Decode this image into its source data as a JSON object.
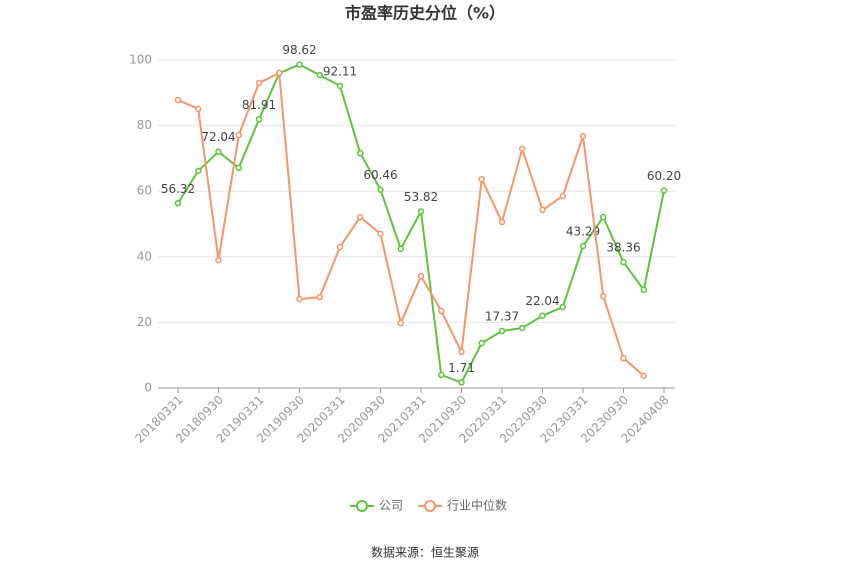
{
  "chart_data": {
    "type": "line",
    "title": "市盈率历史分位（%）",
    "categories": [
      "20180331",
      null,
      "20180930",
      null,
      "20190331",
      null,
      "20190930",
      null,
      "20200331",
      null,
      "20200930",
      null,
      "20210331",
      null,
      "20210930",
      null,
      "20220331",
      null,
      "20220930",
      null,
      "20230331",
      null,
      "20230930",
      null,
      "20240408"
    ],
    "series": [
      {
        "name": "公司",
        "color": "#5cc43a",
        "values": [
          56.32,
          66.2,
          72.04,
          67.1,
          81.91,
          96.0,
          98.62,
          95.4,
          92.11,
          71.6,
          60.46,
          42.4,
          53.82,
          4.0,
          1.71,
          13.7,
          17.37,
          18.3,
          22.04,
          24.7,
          43.29,
          52.1,
          38.36,
          29.9,
          60.2
        ],
        "value_labels": [
          "56.32",
          null,
          "72.04",
          null,
          "81.91",
          null,
          "98.62",
          null,
          "92.11",
          null,
          "60.46",
          null,
          "53.82",
          null,
          "1.71",
          null,
          "17.37",
          null,
          "22.04",
          null,
          "43.29",
          null,
          "38.36",
          null,
          "60.20"
        ]
      },
      {
        "name": "行业中位数",
        "color": "#f4956a",
        "values": [
          87.8,
          85.1,
          39.0,
          77.1,
          93.0,
          96.0,
          27.1,
          27.7,
          43.0,
          52.1,
          47.0,
          19.8,
          34.1,
          23.5,
          11.0,
          63.7,
          50.6,
          72.9,
          54.3,
          58.5,
          76.8,
          28.0,
          9.1,
          3.7,
          null
        ]
      }
    ],
    "ylim": [
      0,
      100
    ],
    "yticks": [
      0,
      20,
      40,
      60,
      80,
      100
    ],
    "grid": true,
    "legend": "bottom",
    "source": "数据来源：恒生聚源"
  }
}
